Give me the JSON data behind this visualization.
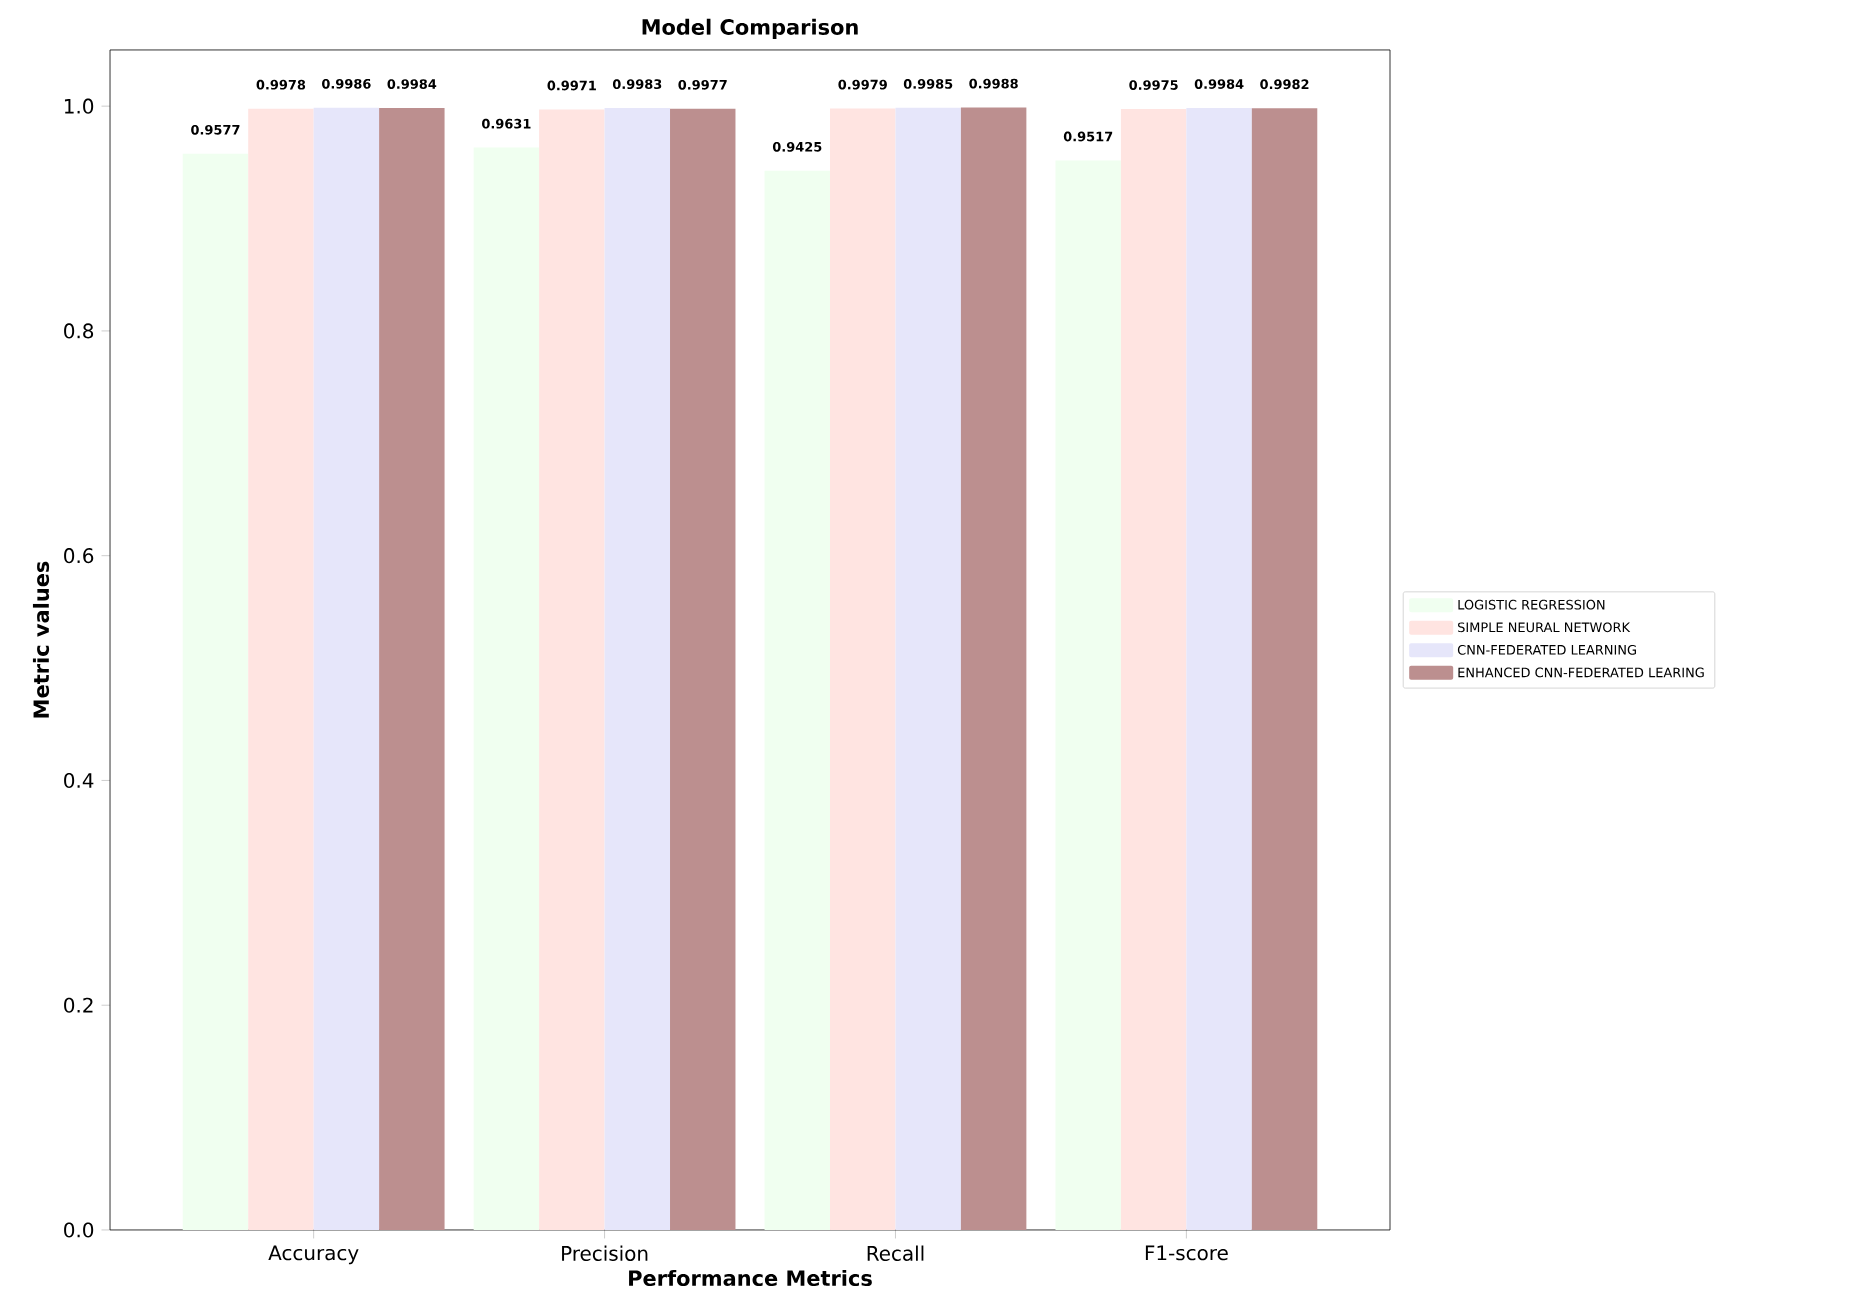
{
  "chart_data": {
    "type": "bar",
    "title": "Model Comparison",
    "xlabel": "Performance Metrics",
    "ylabel": "Metric values",
    "categories": [
      "Accuracy",
      "Precision",
      "Recall",
      "F1-score"
    ],
    "series": [
      {
        "name": "LOGISTIC REGRESSION",
        "color": "#f0fff0",
        "values": [
          0.9577,
          0.9631,
          0.9425,
          0.9517
        ]
      },
      {
        "name": "SIMPLE NEURAL NETWORK",
        "color": "#ffe4e1",
        "values": [
          0.9978,
          0.9971,
          0.9979,
          0.9975
        ]
      },
      {
        "name": "CNN-FEDERATED LEARNING",
        "color": "#e6e6fa",
        "values": [
          0.9986,
          0.9983,
          0.9985,
          0.9984
        ]
      },
      {
        "name": "ENHANCED CNN-FEDERATED LEARING",
        "color": "#bc8f8f",
        "values": [
          0.9984,
          0.9977,
          0.9988,
          0.9982
        ]
      }
    ],
    "ylim": [
      0,
      1.05
    ],
    "yticks": [
      {
        "value": 0,
        "label": "0.0"
      },
      {
        "value": 0.2,
        "label": "0.2"
      },
      {
        "value": 0.4,
        "label": "0.4"
      },
      {
        "value": 0.6,
        "label": "0.6"
      },
      {
        "value": 0.8,
        "label": "0.8"
      },
      {
        "value": 1.0,
        "label": "1.0"
      }
    ],
    "data_labels": true,
    "legend": "right",
    "grid": false
  }
}
